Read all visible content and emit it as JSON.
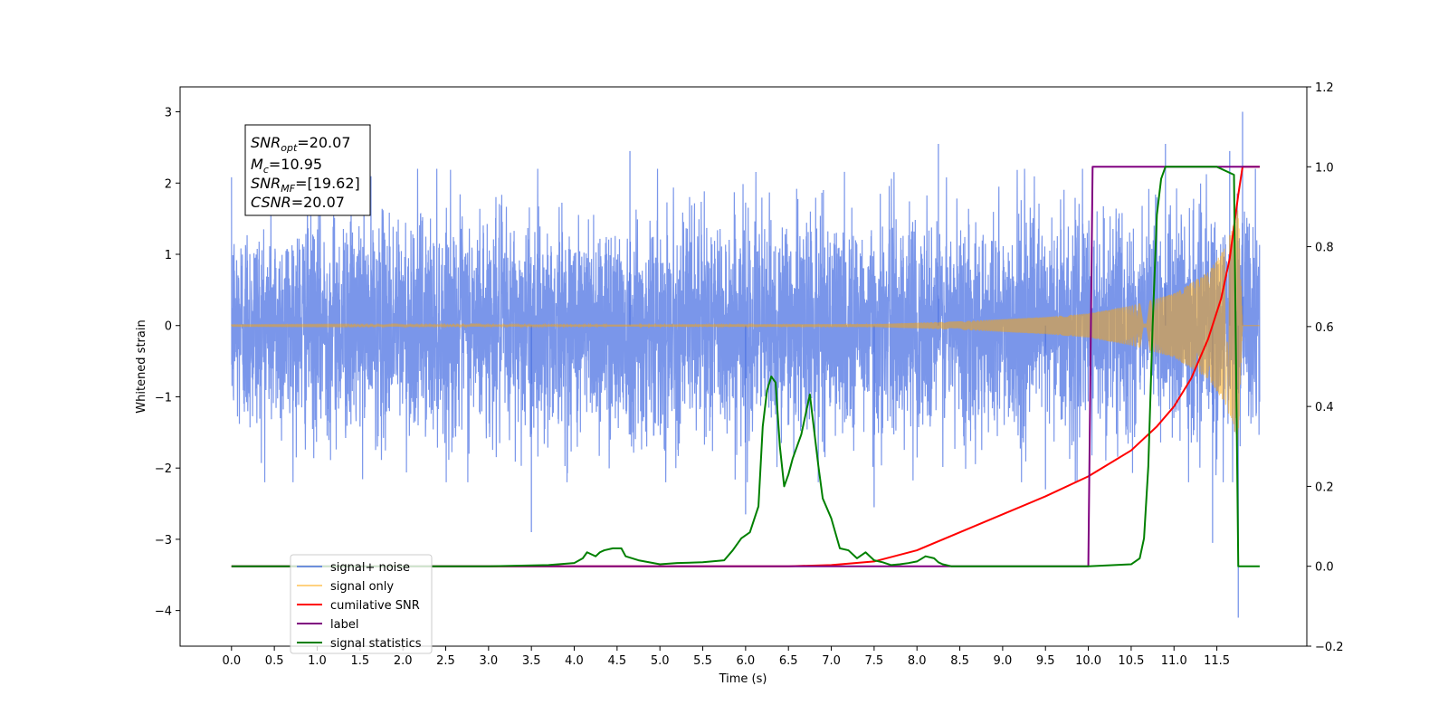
{
  "chart_data": {
    "type": "line",
    "xlabel": "Time (s)",
    "ylabel": "Whitened strain",
    "xlim": [
      -0.6,
      12.55
    ],
    "ylim_left": [
      -4.5,
      3.35
    ],
    "ylim_right": [
      -0.2,
      1.2
    ],
    "x_ticks": [
      "0.0",
      "0.5",
      "1.0",
      "1.5",
      "2.0",
      "2.5",
      "3.0",
      "3.5",
      "4.0",
      "4.5",
      "5.0",
      "5.5",
      "6.0",
      "6.5",
      "7.0",
      "7.5",
      "8.0",
      "8.5",
      "9.0",
      "9.5",
      "10.0",
      "10.5",
      "11.0",
      "11.5"
    ],
    "y_ticks_left": [
      "3",
      "2",
      "1",
      "0",
      "−1",
      "−2",
      "−3",
      "−4"
    ],
    "y_ticks_right": [
      "1.2",
      "1.0",
      "0.8",
      "0.6",
      "0.4",
      "0.2",
      "0.0",
      "−0.2"
    ],
    "grid": false,
    "legend_position": "lower-left",
    "info_box": [
      {
        "main": "SNR",
        "sub": "opt",
        "rest": "=20.07"
      },
      {
        "main": "M",
        "sub": "c",
        "rest": "=10.95"
      },
      {
        "main": "SNR",
        "sub": "MF",
        "rest": "=[19.62]"
      },
      {
        "main": "CSNR",
        "sub": "",
        "rest": "=20.07"
      }
    ],
    "series": [
      {
        "name": "signal+ noise",
        "axis": "left",
        "color": "#4169e1",
        "kind": "noise",
        "x_range": [
          0.0,
          12.0
        ],
        "noise_std": 0.75,
        "extreme_points": [
          [
            3.5,
            -2.9
          ],
          [
            4.65,
            2.45
          ],
          [
            6.0,
            -2.65
          ],
          [
            7.5,
            -2.55
          ],
          [
            8.25,
            2.55
          ],
          [
            9.5,
            -2.3
          ],
          [
            10.9,
            2.55
          ],
          [
            11.45,
            -3.05
          ],
          [
            11.65,
            2.45
          ],
          [
            11.75,
            -4.1
          ],
          [
            11.8,
            3.0
          ]
        ]
      },
      {
        "name": "signal only",
        "axis": "left",
        "color": "#ffa500",
        "kind": "chirp",
        "x_range": [
          0.0,
          12.0
        ],
        "envelope": [
          [
            0.0,
            0.005
          ],
          [
            7.5,
            0.02
          ],
          [
            8.5,
            0.06
          ],
          [
            9.5,
            0.12
          ],
          [
            10.0,
            0.17
          ],
          [
            10.5,
            0.28
          ],
          [
            11.0,
            0.45
          ],
          [
            11.4,
            0.75
          ],
          [
            11.6,
            1.1
          ],
          [
            11.75,
            1.65
          ],
          [
            11.8,
            0.0
          ],
          [
            12.0,
            0.0
          ]
        ]
      },
      {
        "name": "cumilative SNR",
        "axis": "right",
        "color": "#ff0000",
        "x": [
          0.0,
          6.5,
          7.0,
          7.5,
          8.0,
          8.5,
          9.0,
          9.5,
          10.0,
          10.5,
          10.8,
          11.0,
          11.2,
          11.4,
          11.55,
          11.65,
          11.75,
          11.8,
          12.0
        ],
        "y": [
          0.0,
          0.0,
          0.003,
          0.012,
          0.04,
          0.085,
          0.13,
          0.175,
          0.225,
          0.29,
          0.35,
          0.4,
          0.47,
          0.57,
          0.67,
          0.77,
          0.93,
          1.0,
          1.0
        ]
      },
      {
        "name": "label",
        "axis": "right",
        "color": "#800080",
        "x": [
          0.0,
          10.0,
          10.05,
          11.8,
          12.0
        ],
        "y": [
          0.0,
          0.0,
          1.0,
          1.0,
          1.0
        ]
      },
      {
        "name": "signal statistics",
        "axis": "right",
        "color": "#008000",
        "x": [
          0.0,
          3.0,
          3.7,
          4.0,
          4.1,
          4.15,
          4.2,
          4.25,
          4.3,
          4.35,
          4.45,
          4.55,
          4.6,
          4.75,
          5.0,
          5.2,
          5.5,
          5.75,
          5.85,
          5.95,
          6.05,
          6.15,
          6.2,
          6.25,
          6.3,
          6.35,
          6.4,
          6.45,
          6.5,
          6.55,
          6.65,
          6.75,
          6.85,
          6.9,
          7.0,
          7.1,
          7.2,
          7.3,
          7.4,
          7.5,
          7.6,
          7.7,
          7.8,
          7.9,
          8.0,
          8.1,
          8.2,
          8.25,
          8.3,
          8.4,
          8.6,
          10.0,
          10.5,
          10.6,
          10.65,
          10.7,
          10.75,
          10.8,
          10.85,
          10.9,
          10.95,
          11.0,
          11.2,
          11.5,
          11.7,
          11.75,
          11.8,
          12.0
        ],
        "y": [
          0.0,
          0.0,
          0.003,
          0.008,
          0.02,
          0.035,
          0.03,
          0.025,
          0.035,
          0.04,
          0.045,
          0.045,
          0.025,
          0.015,
          0.005,
          0.008,
          0.01,
          0.015,
          0.04,
          0.07,
          0.085,
          0.15,
          0.35,
          0.44,
          0.475,
          0.46,
          0.3,
          0.2,
          0.23,
          0.27,
          0.33,
          0.43,
          0.25,
          0.17,
          0.12,
          0.045,
          0.04,
          0.02,
          0.035,
          0.015,
          0.01,
          0.003,
          0.005,
          0.008,
          0.012,
          0.025,
          0.02,
          0.01,
          0.005,
          0.0,
          0.0,
          0.0,
          0.005,
          0.02,
          0.07,
          0.25,
          0.6,
          0.88,
          0.97,
          1.0,
          1.0,
          1.0,
          1.0,
          1.0,
          0.98,
          0.0,
          0.0,
          0.0
        ]
      }
    ]
  }
}
